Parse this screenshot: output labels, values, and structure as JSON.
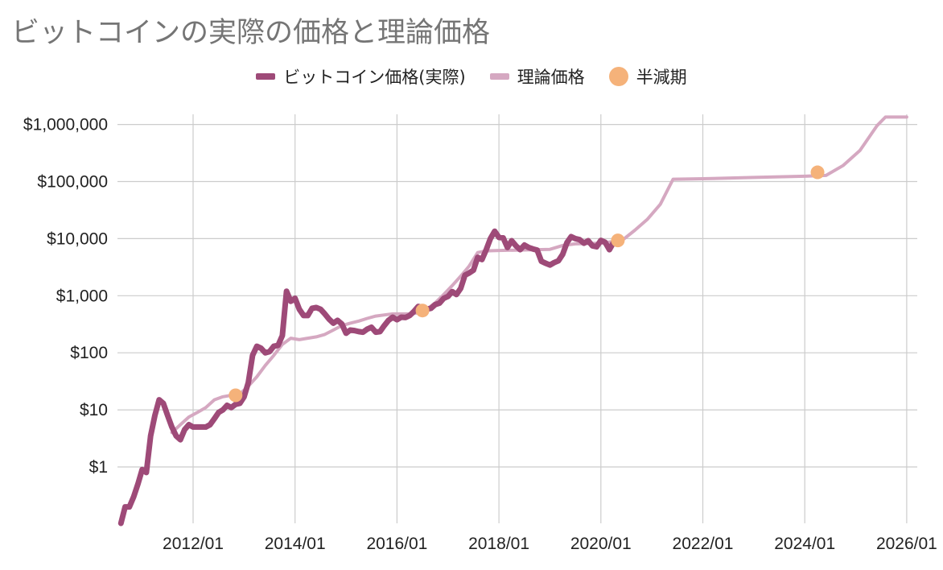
{
  "title": "ビットコインの実際の価格と理論価格",
  "chart_data": {
    "type": "line",
    "title": "ビットコインの実際の価格と理論価格",
    "y_scale": "log",
    "ylim": [
      0.1,
      1000000
    ],
    "xlim": [
      "2010/07",
      "2026/01"
    ],
    "grid": true,
    "legend_position": "top-center",
    "colors": {
      "actual": "#9e4a78",
      "theoretical": "#d5a8c1",
      "halving": "#f5b27a",
      "grid": "#cccccc"
    },
    "y_ticks": [
      {
        "value": 1,
        "label": "$1"
      },
      {
        "value": 10,
        "label": "$10"
      },
      {
        "value": 100,
        "label": "$100"
      },
      {
        "value": 1000,
        "label": "$1,000"
      },
      {
        "value": 10000,
        "label": "$10,000"
      },
      {
        "value": 100000,
        "label": "$100,000"
      },
      {
        "value": 1000000,
        "label": "$1,000,000"
      }
    ],
    "x_ticks": [
      {
        "date": "2012/01",
        "label": "2012/01"
      },
      {
        "date": "2014/01",
        "label": "2014/01"
      },
      {
        "date": "2016/01",
        "label": "2016/01"
      },
      {
        "date": "2018/01",
        "label": "2018/01"
      },
      {
        "date": "2020/01",
        "label": "2020/01"
      },
      {
        "date": "2022/01",
        "label": "2022/01"
      },
      {
        "date": "2024/01",
        "label": "2024/01"
      },
      {
        "date": "2026/01",
        "label": "2026/01"
      }
    ],
    "series": [
      {
        "name": "ビットコイン価格(実際)",
        "key": "actual",
        "points": [
          [
            "2010/08",
            0.07
          ],
          [
            "2010/09",
            0.2
          ],
          [
            "2010/10",
            0.2
          ],
          [
            "2010/11",
            0.3
          ],
          [
            "2010/12",
            0.5
          ],
          [
            "2011/01",
            0.9
          ],
          [
            "2011/02",
            0.8
          ],
          [
            "2011/03",
            3.5
          ],
          [
            "2011/04",
            8
          ],
          [
            "2011/05",
            15
          ],
          [
            "2011/06",
            13
          ],
          [
            "2011/07",
            8
          ],
          [
            "2011/08",
            5
          ],
          [
            "2011/09",
            3.5
          ],
          [
            "2011/10",
            3
          ],
          [
            "2011/11",
            4.5
          ],
          [
            "2011/12",
            5.5
          ],
          [
            "2012/01",
            5
          ],
          [
            "2012/02",
            5
          ],
          [
            "2012/03",
            5
          ],
          [
            "2012/04",
            5
          ],
          [
            "2012/05",
            5.5
          ],
          [
            "2012/06",
            7
          ],
          [
            "2012/07",
            9
          ],
          [
            "2012/08",
            10
          ],
          [
            "2012/09",
            12
          ],
          [
            "2012/10",
            11
          ],
          [
            "2012/11",
            12.5
          ],
          [
            "2012/12",
            13
          ],
          [
            "2013/01",
            17
          ],
          [
            "2013/02",
            30
          ],
          [
            "2013/03",
            90
          ],
          [
            "2013/04",
            130
          ],
          [
            "2013/05",
            120
          ],
          [
            "2013/06",
            100
          ],
          [
            "2013/07",
            105
          ],
          [
            "2013/08",
            130
          ],
          [
            "2013/09",
            135
          ],
          [
            "2013/10",
            200
          ],
          [
            "2013/11",
            1200
          ],
          [
            "2013/12",
            800
          ],
          [
            "2014/01",
            900
          ],
          [
            "2014/02",
            580
          ],
          [
            "2014/03",
            450
          ],
          [
            "2014/04",
            450
          ],
          [
            "2014/05",
            600
          ],
          [
            "2014/06",
            620
          ],
          [
            "2014/07",
            580
          ],
          [
            "2014/08",
            480
          ],
          [
            "2014/09",
            390
          ],
          [
            "2014/10",
            330
          ],
          [
            "2014/11",
            370
          ],
          [
            "2014/12",
            320
          ],
          [
            "2015/01",
            220
          ],
          [
            "2015/02",
            250
          ],
          [
            "2015/03",
            245
          ],
          [
            "2015/04",
            235
          ],
          [
            "2015/05",
            230
          ],
          [
            "2015/06",
            260
          ],
          [
            "2015/07",
            280
          ],
          [
            "2015/08",
            230
          ],
          [
            "2015/09",
            235
          ],
          [
            "2015/10",
            300
          ],
          [
            "2015/11",
            370
          ],
          [
            "2015/12",
            420
          ],
          [
            "2016/01",
            380
          ],
          [
            "2016/02",
            420
          ],
          [
            "2016/03",
            415
          ],
          [
            "2016/04",
            450
          ],
          [
            "2016/05",
            530
          ],
          [
            "2016/06",
            650
          ],
          [
            "2016/07",
            620
          ],
          [
            "2016/08",
            580
          ],
          [
            "2016/09",
            600
          ],
          [
            "2016/10",
            700
          ],
          [
            "2016/11",
            740
          ],
          [
            "2016/12",
            900
          ],
          [
            "2017/01",
            970
          ],
          [
            "2017/02",
            1180
          ],
          [
            "2017/03",
            1050
          ],
          [
            "2017/04",
            1350
          ],
          [
            "2017/05",
            2300
          ],
          [
            "2017/06",
            2500
          ],
          [
            "2017/07",
            2800
          ],
          [
            "2017/08",
            4700
          ],
          [
            "2017/09",
            4300
          ],
          [
            "2017/10",
            6400
          ],
          [
            "2017/11",
            10000
          ],
          [
            "2017/12",
            13500
          ],
          [
            "2018/01",
            10500
          ],
          [
            "2018/02",
            10300
          ],
          [
            "2018/03",
            7000
          ],
          [
            "2018/04",
            9200
          ],
          [
            "2018/05",
            7500
          ],
          [
            "2018/06",
            6400
          ],
          [
            "2018/07",
            7700
          ],
          [
            "2018/08",
            7000
          ],
          [
            "2018/09",
            6600
          ],
          [
            "2018/10",
            6300
          ],
          [
            "2018/11",
            4000
          ],
          [
            "2018/12",
            3700
          ],
          [
            "2019/01",
            3450
          ],
          [
            "2019/02",
            3800
          ],
          [
            "2019/03",
            4100
          ],
          [
            "2019/04",
            5300
          ],
          [
            "2019/05",
            8500
          ],
          [
            "2019/06",
            10800
          ],
          [
            "2019/07",
            10000
          ],
          [
            "2019/08",
            9600
          ],
          [
            "2019/09",
            8300
          ],
          [
            "2019/10",
            9200
          ],
          [
            "2019/11",
            7500
          ],
          [
            "2019/12",
            7200
          ],
          [
            "2020/01",
            9300
          ],
          [
            "2020/02",
            8600
          ],
          [
            "2020/03",
            6400
          ],
          [
            "2020/04",
            8600
          ]
        ]
      },
      {
        "name": "理論価格",
        "key": "theoretical",
        "points": [
          [
            "2011/08",
            4
          ],
          [
            "2011/10",
            5.5
          ],
          [
            "2011/12",
            7.5
          ],
          [
            "2012/02",
            9
          ],
          [
            "2012/04",
            11
          ],
          [
            "2012/06",
            15
          ],
          [
            "2012/08",
            17
          ],
          [
            "2012/10",
            18
          ],
          [
            "2012/12",
            19
          ],
          [
            "2013/02",
            26
          ],
          [
            "2013/04",
            38
          ],
          [
            "2013/06",
            60
          ],
          [
            "2013/08",
            90
          ],
          [
            "2013/10",
            140
          ],
          [
            "2013/12",
            180
          ],
          [
            "2014/02",
            170
          ],
          [
            "2014/04",
            180
          ],
          [
            "2014/06",
            190
          ],
          [
            "2014/08",
            210
          ],
          [
            "2014/10",
            250
          ],
          [
            "2014/12",
            300
          ],
          [
            "2015/02",
            330
          ],
          [
            "2015/04",
            360
          ],
          [
            "2015/06",
            400
          ],
          [
            "2015/08",
            440
          ],
          [
            "2015/10",
            460
          ],
          [
            "2015/12",
            480
          ],
          [
            "2016/02",
            480
          ],
          [
            "2016/04",
            480
          ],
          [
            "2016/06",
            500
          ],
          [
            "2016/08",
            580
          ],
          [
            "2016/10",
            750
          ],
          [
            "2016/12",
            1050
          ],
          [
            "2017/02",
            1500
          ],
          [
            "2017/04",
            2200
          ],
          [
            "2017/06",
            3300
          ],
          [
            "2017/08",
            5700
          ],
          [
            "2017/10",
            6100
          ],
          [
            "2018/01",
            6200
          ],
          [
            "2018/06",
            6300
          ],
          [
            "2019/01",
            6500
          ],
          [
            "2019/04",
            7600
          ],
          [
            "2019/07",
            8100
          ],
          [
            "2020/01",
            8300
          ],
          [
            "2020/06",
            9300
          ],
          [
            "2020/09",
            14000
          ],
          [
            "2020/12",
            22000
          ],
          [
            "2021/03",
            40000
          ],
          [
            "2021/06",
            110000
          ],
          [
            "2022/01",
            112000
          ],
          [
            "2023/01",
            118000
          ],
          [
            "2024/01",
            124000
          ],
          [
            "2024/06",
            128000
          ],
          [
            "2024/10",
            190000
          ],
          [
            "2025/02",
            350000
          ],
          [
            "2025/06",
            950000
          ],
          [
            "2025/08",
            1350000
          ],
          [
            "2026/01",
            1350000
          ]
        ]
      }
    ],
    "halvings": {
      "name": "半減期",
      "points": [
        [
          "2012/11",
          18
        ],
        [
          "2016/07",
          550
        ],
        [
          "2020/05",
          9300
        ],
        [
          "2024/04",
          145000
        ]
      ]
    }
  }
}
